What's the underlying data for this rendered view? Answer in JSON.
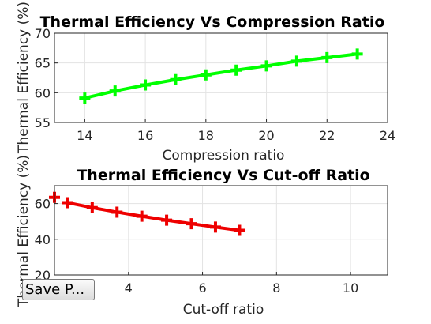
{
  "chart_data": [
    {
      "type": "line",
      "title": "Thermal Efficiency Vs Compression Ratio",
      "xlabel": "Compression ratio",
      "ylabel": "Thermal Efficiency (%)",
      "xlim": [
        13,
        24
      ],
      "ylim": [
        55,
        70
      ],
      "xticks": [
        14,
        16,
        18,
        20,
        22,
        24
      ],
      "yticks": [
        55,
        60,
        65,
        70
      ],
      "grid": true,
      "color": "#00ff00",
      "marker": "plus",
      "series": [
        {
          "x": [
            14,
            15,
            16,
            17,
            18,
            19,
            20,
            21,
            22,
            23
          ],
          "values": [
            59.1,
            60.3,
            61.3,
            62.2,
            63.0,
            63.8,
            64.5,
            65.3,
            65.9,
            66.5
          ]
        }
      ]
    },
    {
      "type": "line",
      "title": "Thermal Efficiency Vs Cut-off Ratio",
      "xlabel": "Cut-off ratio",
      "ylabel": "Thermal Efficiency (%)",
      "xlim": [
        2,
        11
      ],
      "ylim": [
        20,
        70
      ],
      "xticks": [
        4,
        6,
        8,
        10
      ],
      "yticks": [
        20,
        40,
        60
      ],
      "grid": true,
      "color": "#ee0000",
      "marker": "plus",
      "series": [
        {
          "x": [
            2.35,
            3.02,
            3.69,
            4.36,
            5.03,
            5.7,
            6.35,
            7.0
          ],
          "values": [
            60.5,
            57.7,
            55.2,
            52.9,
            50.7,
            48.7,
            46.8,
            45.0
          ]
        }
      ],
      "extra_points": {
        "x": [
          2.0
        ],
        "values": [
          63.5
        ]
      }
    }
  ],
  "ui": {
    "save_button_label": "Save P..."
  }
}
